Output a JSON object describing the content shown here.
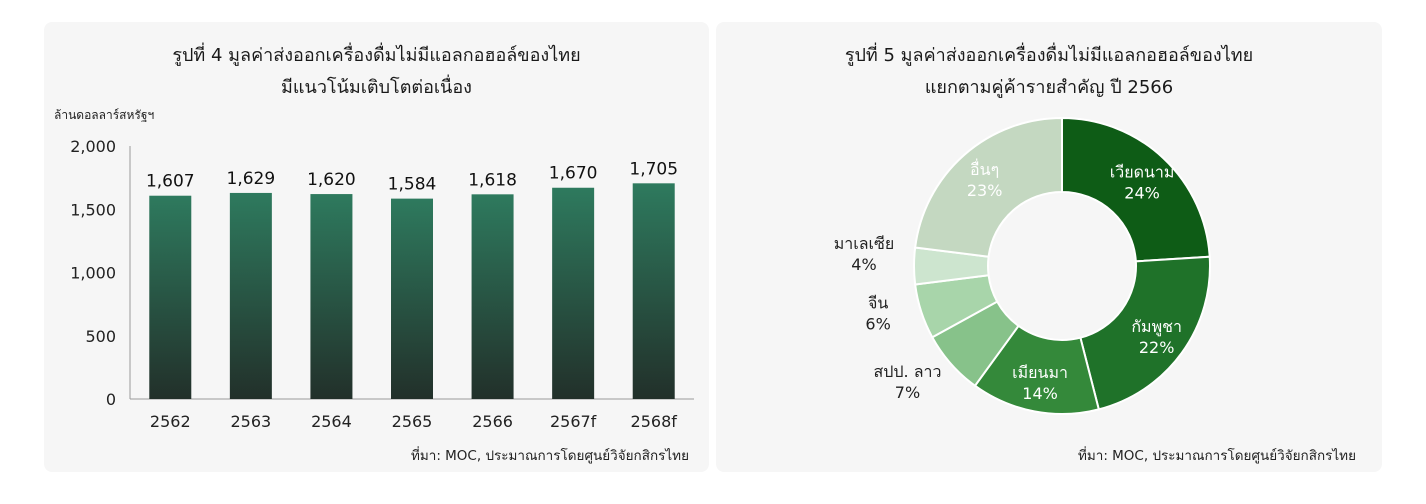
{
  "charts": {
    "bar": {
      "title_line1": "รูปที่ 4  มูลค่าส่งออกเครื่องดื่มไม่มีแอลกอฮอล์ของไทย",
      "title_line2": "มีแนวโน้มเติบโตต่อเนื่อง",
      "source": "ที่มา: MOC, ประมาณการโดยศูนย์วิจัยกสิกรไทย"
    },
    "pie": {
      "title_line1": "รูปที่ 5 มูลค่าส่งออกเครื่องดื่มไม่มีแอลกอฮอล์ของไทย",
      "title_line2": "แยกตามคู่ค้ารายสำคัญ  ปี 2566",
      "source": "ที่มา: MOC, ประมาณการโดยศูนย์วิจัยกสิกรไทย"
    }
  },
  "chart_data": [
    {
      "type": "bar",
      "title": "รูปที่ 4  มูลค่าส่งออกเครื่องดื่มไม่มีแอลกอฮอล์ของไทย มีแนวโน้มเติบโตต่อเนื่อง",
      "ylabel": "ล้านดอลลาร์สหรัฐฯ",
      "categories": [
        "2562",
        "2563",
        "2564",
        "2565",
        "2566",
        "2567f",
        "2568f"
      ],
      "values": [
        1607,
        1629,
        1620,
        1584,
        1618,
        1670,
        1705
      ],
      "value_labels": [
        "1,607",
        "1,629",
        "1,620",
        "1,584",
        "1,618",
        "1,670",
        "1,705"
      ],
      "ylim": [
        0,
        2000
      ],
      "yticks": [
        0,
        500,
        1000,
        1500,
        2000
      ],
      "ytick_labels": [
        "0",
        "500",
        "1,000",
        "1,500",
        "2,000"
      ],
      "grid": false,
      "colors": {
        "bar_top": "#2e7a5e",
        "bar_bottom": "#22302a"
      }
    },
    {
      "type": "pie",
      "title": "รูปที่ 5 มูลค่าส่งออกเครื่องดื่มไม่มีแอลกอฮอล์ของไทย แยกตามคู่ค้ารายสำคัญ  ปี 2566",
      "donut": true,
      "slices": [
        {
          "label": "เวียดนาม",
          "value": 24,
          "pct": "24%",
          "color": "#0e5c16"
        },
        {
          "label": "กัมพูชา",
          "value": 22,
          "pct": "22%",
          "color": "#1f7229"
        },
        {
          "label": "เมียนมา",
          "value": 14,
          "pct": "14%",
          "color": "#34893a"
        },
        {
          "label": "สปป. ลาว",
          "value": 7,
          "pct": "7%",
          "color": "#87c28a"
        },
        {
          "label": "จีน",
          "value": 6,
          "pct": "6%",
          "color": "#a8d5aa"
        },
        {
          "label": "มาเลเซีย",
          "value": 4,
          "pct": "4%",
          "color": "#cde5cf"
        },
        {
          "label": "อื่นๆ",
          "value": 23,
          "pct": "23%",
          "color": "#c4d8c1"
        }
      ]
    }
  ]
}
